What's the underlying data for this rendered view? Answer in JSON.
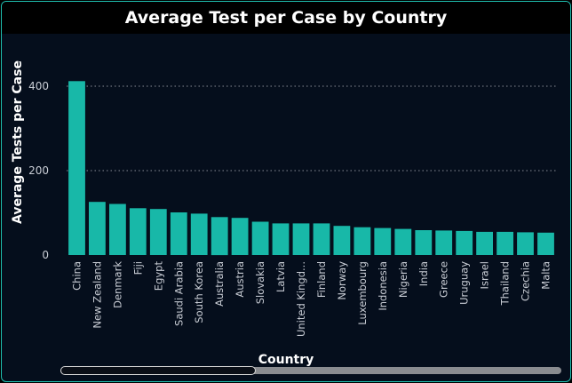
{
  "title": "Average Test per Case by Country",
  "chart_data": {
    "type": "bar",
    "title": "Average Test per Case by Country",
    "xlabel": "Country",
    "ylabel": "Average Tests per Case",
    "ylim": [
      0,
      450
    ],
    "yticks": [
      0,
      200,
      400
    ],
    "grid": true,
    "categories": [
      "China",
      "New Zealand",
      "Denmark",
      "Fiji",
      "Egypt",
      "Saudi Arabia",
      "South Korea",
      "Australia",
      "Austria",
      "Slovakia",
      "Latvia",
      "United Kingd...",
      "Finland",
      "Norway",
      "Luxembourg",
      "Indonesia",
      "Nigeria",
      "India",
      "Greece",
      "Uruguay",
      "Israel",
      "Thailand",
      "Czechia",
      "Malta"
    ],
    "values": [
      412,
      126,
      121,
      111,
      109,
      101,
      98,
      90,
      88,
      79,
      75,
      75,
      75,
      69,
      66,
      64,
      62,
      59,
      58,
      57,
      55,
      55,
      54,
      53
    ],
    "bar_color": "#18b8a8"
  }
}
